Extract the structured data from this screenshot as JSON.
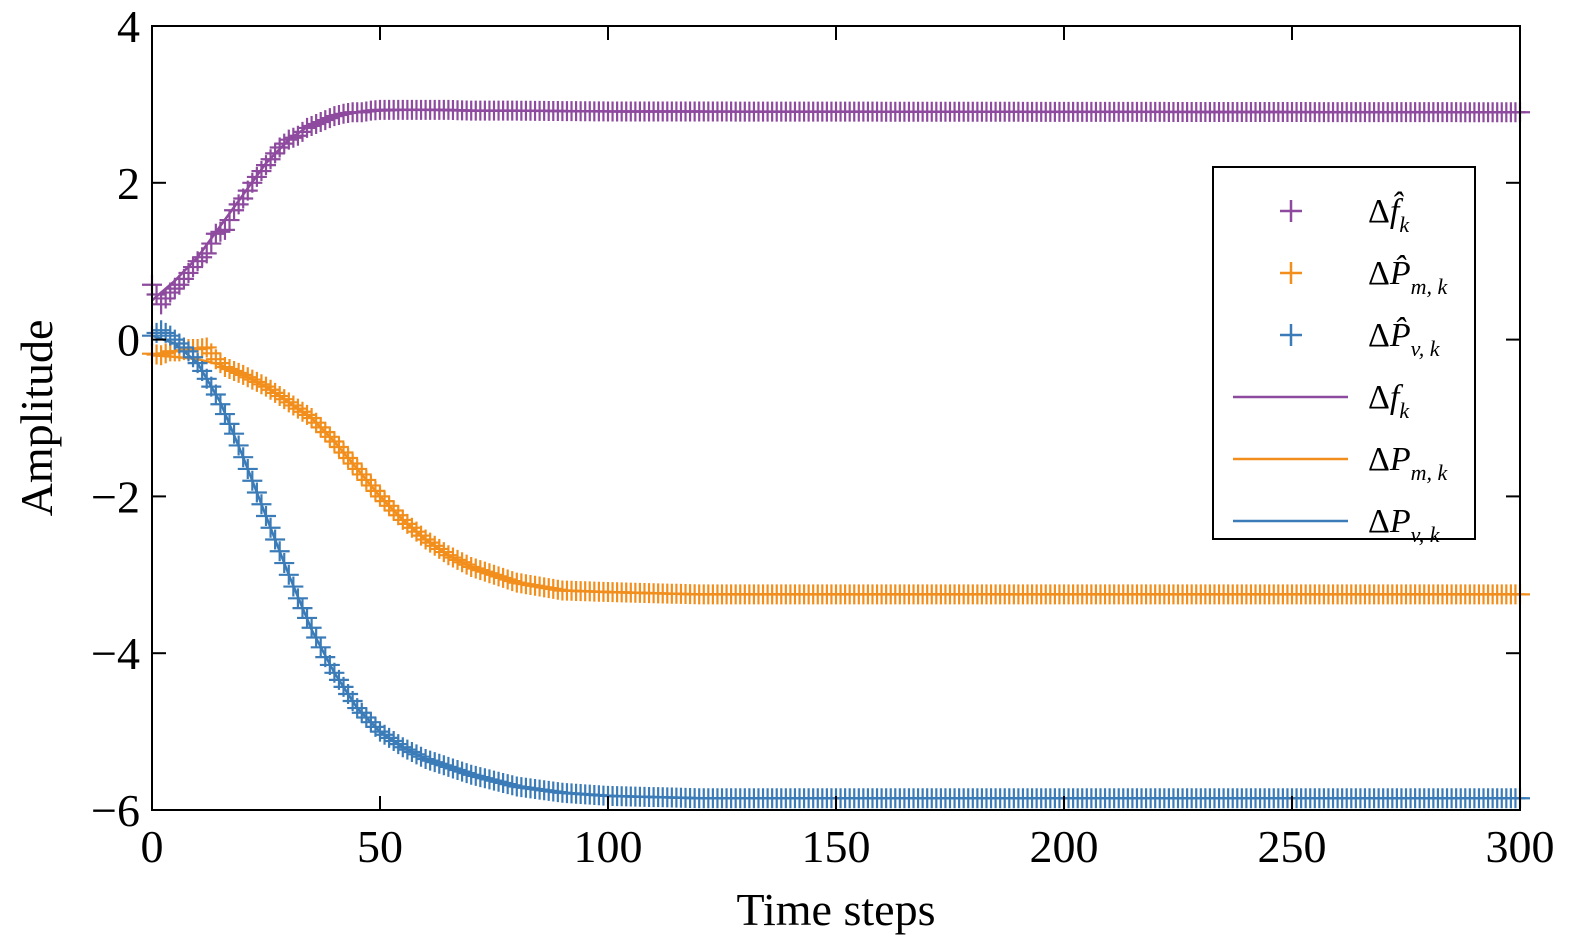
{
  "chart_data": {
    "type": "line",
    "xlabel": "Time steps",
    "ylabel": "Amplitude",
    "xlim": [
      0,
      300
    ],
    "ylim": [
      -6,
      4
    ],
    "xticks": [
      0,
      50,
      100,
      150,
      200,
      250,
      300
    ],
    "yticks": [
      4,
      2,
      0,
      -2,
      -4,
      -6
    ],
    "ytick_labels": [
      "4",
      "2",
      "0",
      "−2",
      "−4",
      "−6"
    ],
    "grid": false,
    "legend_position": "right",
    "series": [
      {
        "label_base": "Δ",
        "label_var": "f̂",
        "label_sub": "k",
        "style": "marker",
        "marker": "+",
        "color": "#8e4a9e",
        "x": [
          0,
          2,
          4,
          6,
          8,
          10,
          12,
          14,
          16,
          18,
          20,
          22,
          24,
          26,
          28,
          30,
          32,
          34,
          36,
          38,
          40,
          42,
          44,
          46,
          48,
          50,
          55,
          60,
          65,
          70,
          80,
          100,
          300
        ],
        "y": [
          0.7,
          0.45,
          0.6,
          0.7,
          0.85,
          1.0,
          1.1,
          1.35,
          1.4,
          1.65,
          1.8,
          2.0,
          2.15,
          2.3,
          2.45,
          2.55,
          2.6,
          2.7,
          2.75,
          2.8,
          2.85,
          2.88,
          2.9,
          2.9,
          2.92,
          2.93,
          2.93,
          2.93,
          2.93,
          2.92,
          2.92,
          2.91,
          2.9
        ]
      },
      {
        "label_base": "Δ",
        "label_var": "P̂",
        "label_sub": "m, k",
        "style": "marker",
        "marker": "+",
        "color": "#f28e1c",
        "x": [
          0,
          2,
          4,
          6,
          8,
          10,
          12,
          14,
          16,
          18,
          20,
          25,
          30,
          35,
          40,
          45,
          50,
          55,
          60,
          65,
          70,
          80,
          90,
          100,
          120,
          150,
          200,
          300
        ],
        "y": [
          -0.18,
          -0.2,
          -0.15,
          -0.15,
          -0.12,
          -0.12,
          -0.1,
          -0.25,
          -0.35,
          -0.4,
          -0.45,
          -0.6,
          -0.8,
          -1.0,
          -1.3,
          -1.65,
          -2.0,
          -2.3,
          -2.55,
          -2.75,
          -2.9,
          -3.1,
          -3.2,
          -3.22,
          -3.25,
          -3.25,
          -3.25,
          -3.25
        ]
      },
      {
        "label_base": "Δ",
        "label_var": "P̂",
        "label_sub": "v, k",
        "style": "marker",
        "marker": "+",
        "color": "#3b7cb8",
        "x": [
          0,
          2,
          4,
          6,
          8,
          10,
          12,
          14,
          16,
          18,
          20,
          22,
          24,
          26,
          28,
          30,
          32,
          34,
          36,
          38,
          40,
          45,
          50,
          55,
          60,
          70,
          80,
          90,
          100,
          120,
          150,
          200,
          300
        ],
        "y": [
          0.05,
          0.12,
          0.05,
          -0.05,
          -0.15,
          -0.3,
          -0.5,
          -0.7,
          -0.95,
          -1.2,
          -1.5,
          -1.8,
          -2.1,
          -2.4,
          -2.7,
          -3.0,
          -3.3,
          -3.55,
          -3.8,
          -4.05,
          -4.25,
          -4.7,
          -5.0,
          -5.2,
          -5.35,
          -5.55,
          -5.7,
          -5.78,
          -5.82,
          -5.85,
          -5.85,
          -5.85,
          -5.85
        ]
      },
      {
        "label_base": "Δ",
        "label_var": "f",
        "label_sub": "k",
        "style": "line",
        "color": "#8e4a9e",
        "x": [
          0,
          5,
          10,
          15,
          20,
          25,
          30,
          35,
          40,
          45,
          50,
          55,
          60,
          70,
          80,
          100,
          300
        ],
        "y": [
          0.5,
          0.75,
          1.05,
          1.45,
          1.85,
          2.25,
          2.55,
          2.75,
          2.85,
          2.9,
          2.92,
          2.93,
          2.93,
          2.92,
          2.92,
          2.91,
          2.9
        ]
      },
      {
        "label_base": "Δ",
        "label_var": "P",
        "label_sub": "m, k",
        "style": "line",
        "color": "#f28e1c",
        "x": [
          0,
          5,
          10,
          15,
          20,
          25,
          30,
          35,
          40,
          45,
          50,
          55,
          60,
          65,
          70,
          80,
          90,
          100,
          120,
          150,
          200,
          300
        ],
        "y": [
          -0.2,
          -0.22,
          -0.25,
          -0.32,
          -0.45,
          -0.6,
          -0.8,
          -1.0,
          -1.3,
          -1.65,
          -2.0,
          -2.3,
          -2.55,
          -2.75,
          -2.9,
          -3.1,
          -3.2,
          -3.22,
          -3.25,
          -3.25,
          -3.25,
          -3.25
        ]
      },
      {
        "label_base": "Δ",
        "label_var": "P",
        "label_sub": "v, k",
        "style": "line",
        "color": "#3b7cb8",
        "x": [
          0,
          5,
          10,
          15,
          20,
          25,
          30,
          35,
          40,
          45,
          50,
          55,
          60,
          70,
          80,
          90,
          100,
          120,
          150,
          200,
          300
        ],
        "y": [
          0.05,
          -0.05,
          -0.3,
          -0.8,
          -1.5,
          -2.25,
          -3.0,
          -3.7,
          -4.25,
          -4.7,
          -5.0,
          -5.2,
          -5.35,
          -5.55,
          -5.7,
          -5.78,
          -5.82,
          -5.85,
          -5.85,
          -5.85,
          -5.85
        ]
      }
    ]
  }
}
